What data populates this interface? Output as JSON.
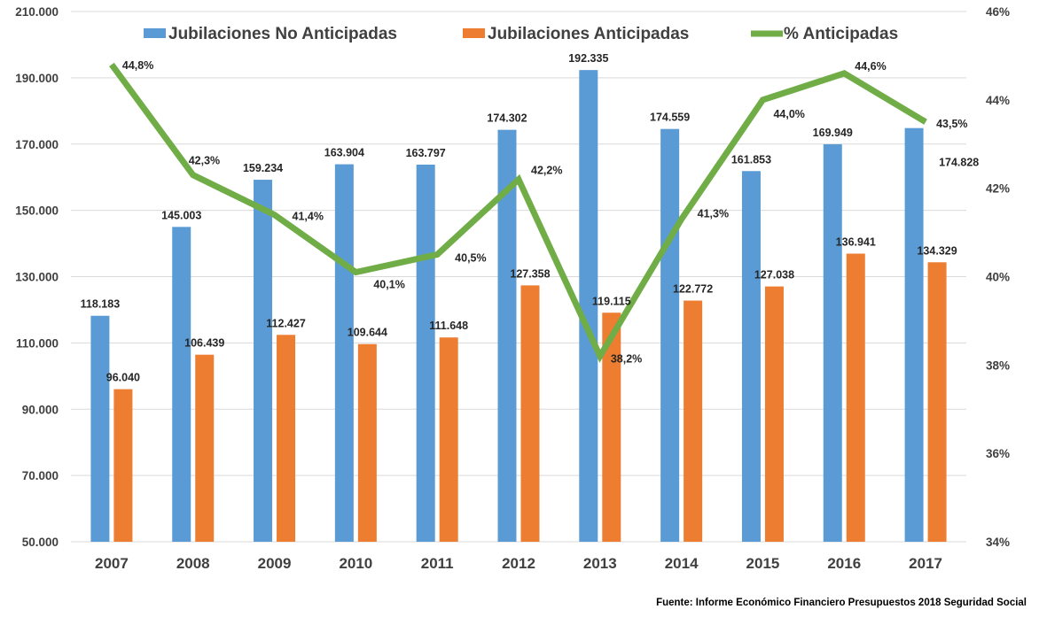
{
  "chart_data": {
    "type": "bar",
    "categories": [
      "2007",
      "2008",
      "2009",
      "2010",
      "2011",
      "2012",
      "2013",
      "2014",
      "2015",
      "2016",
      "2017"
    ],
    "series": [
      {
        "name": "Jubilaciones No Anticipadas",
        "kind": "bar",
        "axis": "left",
        "color": "#5b9bd5",
        "values": [
          118183,
          145003,
          159234,
          163904,
          163797,
          174302,
          192335,
          174559,
          161853,
          169949,
          174828
        ],
        "labels": [
          "118.183",
          "145.003",
          "159.234",
          "163.904",
          "163.797",
          "174.302",
          "192.335",
          "174.559",
          "161.853",
          "169.949",
          "174.828"
        ]
      },
      {
        "name": "Jubilaciones Anticipadas",
        "kind": "bar",
        "axis": "left",
        "color": "#ed7d31",
        "values": [
          96040,
          106439,
          112427,
          109644,
          111648,
          127358,
          119115,
          122772,
          127038,
          136941,
          134329
        ],
        "labels": [
          "96.040",
          "106.439",
          "112.427",
          "109.644",
          "111.648",
          "127.358",
          "119.115",
          "122.772",
          "127.038",
          "136.941",
          "134.329"
        ]
      },
      {
        "name": "% Anticipadas",
        "kind": "line",
        "axis": "right",
        "color": "#70ad47",
        "values": [
          44.8,
          42.3,
          41.4,
          40.1,
          40.5,
          42.2,
          38.2,
          41.3,
          44.0,
          44.6,
          43.5
        ],
        "labels": [
          "44,8%",
          "42,3%",
          "41,4%",
          "40,1%",
          "40,5%",
          "42,2%",
          "38,2%",
          "41,3%",
          "44,0%",
          "44,6%",
          "43,5%"
        ]
      }
    ],
    "y_left": {
      "range": [
        50000,
        210000
      ],
      "ticks": [
        50000,
        70000,
        90000,
        110000,
        130000,
        150000,
        170000,
        190000,
        210000
      ],
      "tick_labels": [
        "50.000",
        "70.000",
        "90.000",
        "110.000",
        "130.000",
        "150.000",
        "170.000",
        "190.000",
        "210.000"
      ]
    },
    "y_right": {
      "range": [
        34,
        46
      ],
      "ticks": [
        34,
        36,
        38,
        40,
        42,
        44,
        46
      ],
      "tick_labels": [
        "34%",
        "36%",
        "38%",
        "40%",
        "42%",
        "44%",
        "46%"
      ]
    },
    "grid": true,
    "legend_position": "top",
    "title": "",
    "xlabel": "",
    "ylabel": ""
  },
  "source": "Fuente: Informe Económico Financiero Presupuestos 2018 Seguridad Social"
}
